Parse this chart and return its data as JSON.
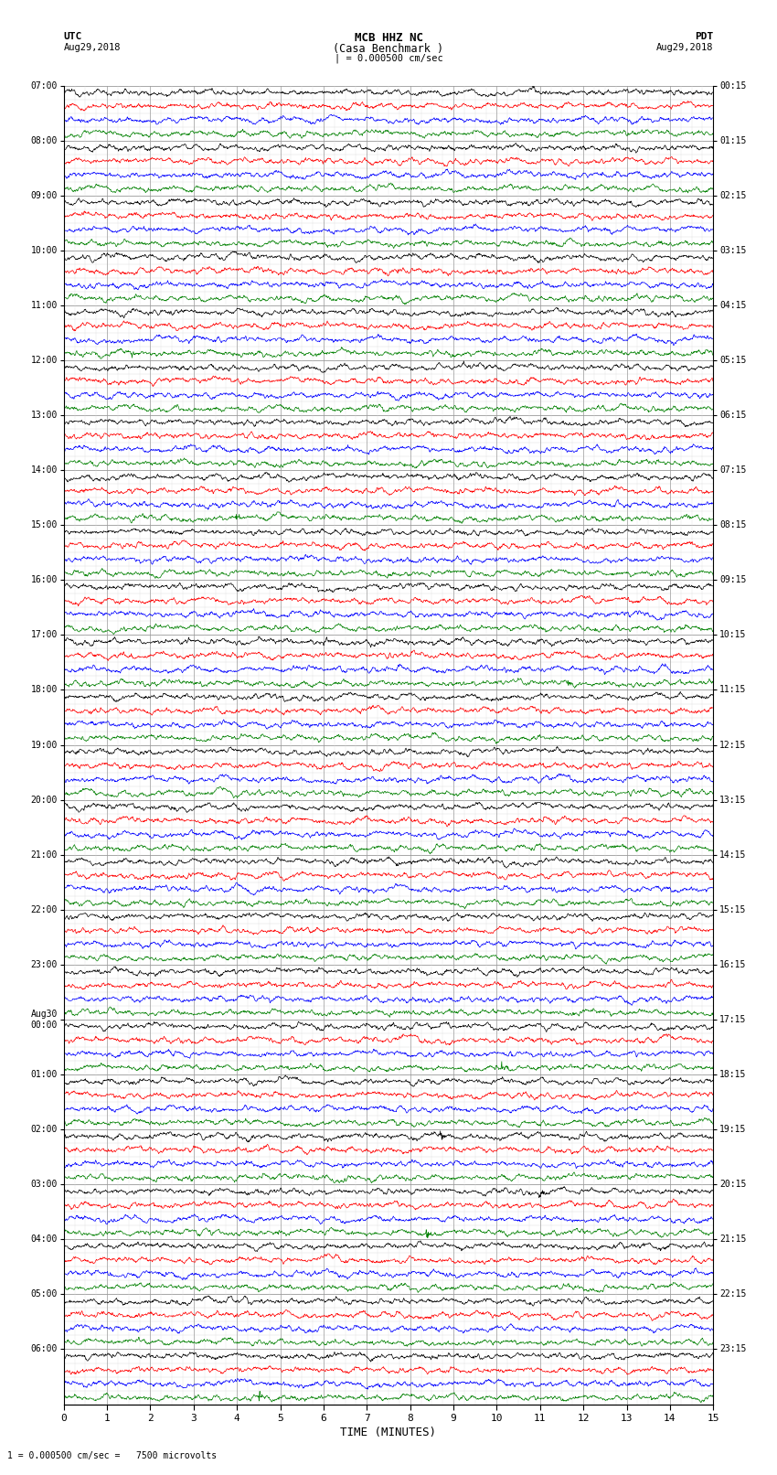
{
  "title_line1": "MCB HHZ NC",
  "title_line2": "(Casa Benchmark )",
  "title_line3": "| = 0.000500 cm/sec",
  "left_label_top": "UTC",
  "left_label_date": "Aug29,2018",
  "right_label_top": "PDT",
  "right_label_date": "Aug29,2018",
  "bottom_label": "TIME (MINUTES)",
  "scale_text": "1 = 0.000500 cm/sec =   7500 microvolts",
  "utc_labels": [
    "07:00",
    "08:00",
    "09:00",
    "10:00",
    "11:00",
    "12:00",
    "13:00",
    "14:00",
    "15:00",
    "16:00",
    "17:00",
    "18:00",
    "19:00",
    "20:00",
    "21:00",
    "22:00",
    "23:00",
    "Aug30\n00:00",
    "01:00",
    "02:00",
    "03:00",
    "04:00",
    "05:00",
    "06:00"
  ],
  "pdt_labels": [
    "00:15",
    "01:15",
    "02:15",
    "03:15",
    "04:15",
    "05:15",
    "06:15",
    "07:15",
    "08:15",
    "09:15",
    "10:15",
    "11:15",
    "12:15",
    "13:15",
    "14:15",
    "15:15",
    "16:15",
    "17:15",
    "18:15",
    "19:15",
    "20:15",
    "21:15",
    "22:15",
    "23:15"
  ],
  "trace_colors": [
    "black",
    "red",
    "blue",
    "green"
  ],
  "n_hour_blocks": 24,
  "traces_per_block": 4,
  "x_min": 0,
  "x_max": 15,
  "x_ticks": [
    0,
    1,
    2,
    3,
    4,
    5,
    6,
    7,
    8,
    9,
    10,
    11,
    12,
    13,
    14,
    15
  ],
  "background_color": "white",
  "grid_color": "#999999",
  "grid_minor_color": "#dddddd",
  "trace_amplitude": 0.12,
  "trace_linewidth": 0.5
}
